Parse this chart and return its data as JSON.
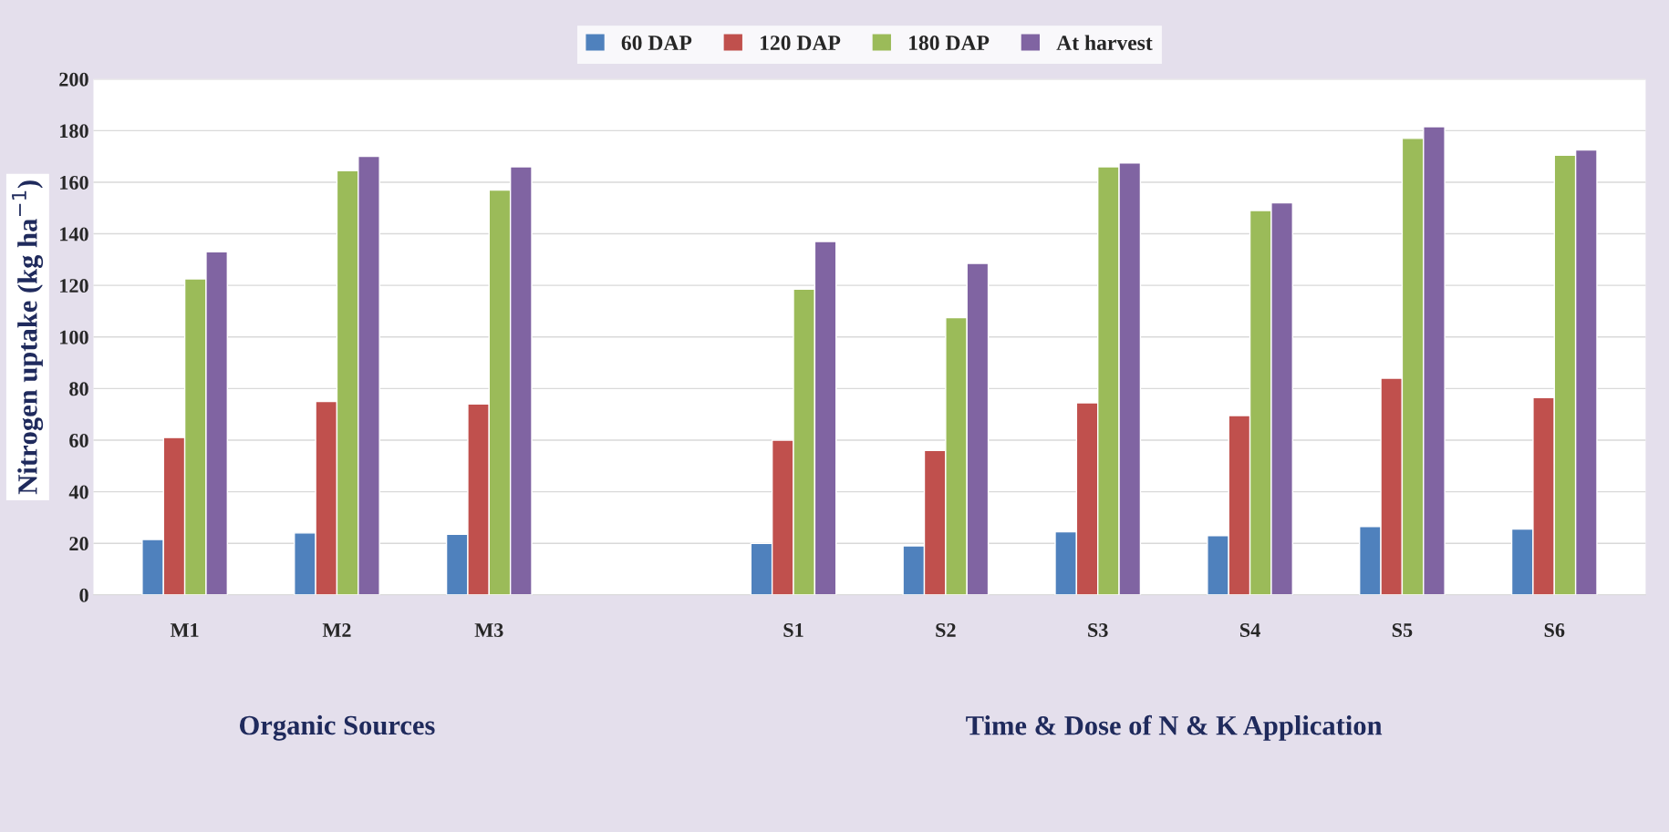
{
  "chart_data": {
    "type": "bar",
    "categories": [
      "M1",
      "M2",
      "M3",
      null,
      "S1",
      "S2",
      "S3",
      "S4",
      "S5",
      "S6"
    ],
    "ylabel": "Nitrogen uptake (kg ha$^{−1}$)",
    "ylim": [
      0,
      200
    ],
    "yticks": [
      0,
      20,
      40,
      60,
      80,
      100,
      120,
      140,
      160,
      180,
      200
    ],
    "grid": "y",
    "legend": "top",
    "annotations": [
      "Organic Sources",
      "Time & Dose of N & K Application"
    ],
    "series": [
      {
        "name": "60 DAP",
        "color": "#4f81bd",
        "values": [
          21.5,
          24,
          23.5,
          null,
          20,
          19,
          24.5,
          23,
          26.5,
          25.5
        ]
      },
      {
        "name": "120 DAP",
        "color": "#c0504d",
        "values": [
          61,
          75,
          74,
          null,
          60,
          56,
          74.5,
          69.5,
          84,
          76.5
        ]
      },
      {
        "name": "180 DAP",
        "color": "#9bbb59",
        "values": [
          122.5,
          164.5,
          157,
          null,
          118.5,
          107.5,
          166,
          149,
          177,
          170.5
        ]
      },
      {
        "name": "At harvest",
        "color": "#8064a2",
        "values": [
          133,
          170,
          166,
          null,
          137,
          128.5,
          167.5,
          152,
          181.5,
          172.5
        ]
      }
    ]
  }
}
